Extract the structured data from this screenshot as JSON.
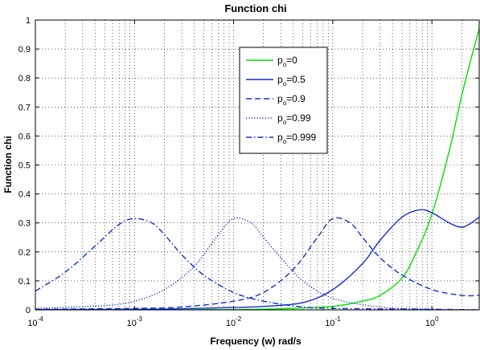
{
  "chart_data": {
    "type": "line",
    "title": "Function chi",
    "xlabel": "Frequency (w) rad/s",
    "ylabel": "Function chi",
    "x_scale": "log",
    "xlim": [
      0.0001,
      3
    ],
    "ylim": [
      0,
      1
    ],
    "grid": true,
    "x_ticks": [
      {
        "value": 0.0001,
        "base": "10",
        "exp": "-4"
      },
      {
        "value": 0.001,
        "base": "10",
        "exp": "-3"
      },
      {
        "value": 0.01,
        "base": "10",
        "exp": "-2"
      },
      {
        "value": 0.1,
        "base": "10",
        "exp": "-1"
      },
      {
        "value": 1,
        "base": "10",
        "exp": "0"
      }
    ],
    "y_ticks": [
      "0",
      "0.1",
      "0.2",
      "0.3",
      "0.4",
      "0.5",
      "0.6",
      "0.7",
      "0.8",
      "0.9",
      "1"
    ],
    "y_tick_values": [
      0,
      0.1,
      0.2,
      0.3,
      0.4,
      0.5,
      0.6,
      0.7,
      0.8,
      0.9,
      1
    ],
    "legend": {
      "placement": "top-right"
    },
    "series": [
      {
        "name": "p",
        "sub": "o",
        "suffix": "=0",
        "color": "#00e000",
        "style": "solid",
        "points": [
          [
            0.0001,
            0
          ],
          [
            0.001,
            0
          ],
          [
            0.01,
            0.001
          ],
          [
            0.03,
            0.004
          ],
          [
            0.1,
            0.012
          ],
          [
            0.2,
            0.03
          ],
          [
            0.3,
            0.05
          ],
          [
            0.5,
            0.11
          ],
          [
            0.7,
            0.2
          ],
          [
            1,
            0.33
          ],
          [
            1.5,
            0.55
          ],
          [
            2,
            0.74
          ],
          [
            2.5,
            0.87
          ],
          [
            3,
            0.97
          ]
        ]
      },
      {
        "name": "p",
        "sub": "o",
        "suffix": "=0.5",
        "color": "#1030d0",
        "style": "solid",
        "points": [
          [
            0.0001,
            0.001
          ],
          [
            0.001,
            0.002
          ],
          [
            0.003,
            0.004
          ],
          [
            0.01,
            0.008
          ],
          [
            0.02,
            0.012
          ],
          [
            0.05,
            0.025
          ],
          [
            0.1,
            0.07
          ],
          [
            0.2,
            0.16
          ],
          [
            0.3,
            0.24
          ],
          [
            0.5,
            0.32
          ],
          [
            0.75,
            0.345
          ],
          [
            1,
            0.335
          ],
          [
            1.5,
            0.3
          ],
          [
            2,
            0.285
          ],
          [
            2.5,
            0.3
          ],
          [
            3,
            0.32
          ]
        ]
      },
      {
        "name": "p",
        "sub": "o",
        "suffix": "=0.9",
        "color": "#1030d0",
        "style": "dashed",
        "points": [
          [
            0.0001,
            0.002
          ],
          [
            0.001,
            0.005
          ],
          [
            0.003,
            0.01
          ],
          [
            0.01,
            0.03
          ],
          [
            0.02,
            0.06
          ],
          [
            0.04,
            0.14
          ],
          [
            0.07,
            0.25
          ],
          [
            0.1,
            0.315
          ],
          [
            0.15,
            0.3
          ],
          [
            0.2,
            0.25
          ],
          [
            0.3,
            0.18
          ],
          [
            0.5,
            0.12
          ],
          [
            1,
            0.07
          ],
          [
            2,
            0.05
          ],
          [
            3,
            0.05
          ]
        ]
      },
      {
        "name": "p",
        "sub": "o",
        "suffix": "=0.99",
        "color": "#1030d0",
        "style": "dotted",
        "points": [
          [
            0.0001,
            0.005
          ],
          [
            0.0005,
            0.015
          ],
          [
            0.001,
            0.03
          ],
          [
            0.002,
            0.07
          ],
          [
            0.004,
            0.15
          ],
          [
            0.007,
            0.26
          ],
          [
            0.01,
            0.315
          ],
          [
            0.015,
            0.3
          ],
          [
            0.02,
            0.25
          ],
          [
            0.03,
            0.18
          ],
          [
            0.05,
            0.1
          ],
          [
            0.1,
            0.04
          ],
          [
            0.3,
            0.01
          ],
          [
            1,
            0.002
          ],
          [
            3,
            0
          ]
        ]
      },
      {
        "name": "p",
        "sub": "o",
        "suffix": "=0.999",
        "color": "#1030d0",
        "style": "dashdot",
        "points": [
          [
            0.0001,
            0.065
          ],
          [
            0.0002,
            0.13
          ],
          [
            0.0004,
            0.22
          ],
          [
            0.0007,
            0.295
          ],
          [
            0.001,
            0.315
          ],
          [
            0.0015,
            0.3
          ],
          [
            0.002,
            0.26
          ],
          [
            0.003,
            0.19
          ],
          [
            0.005,
            0.12
          ],
          [
            0.01,
            0.06
          ],
          [
            0.02,
            0.03
          ],
          [
            0.05,
            0.01
          ],
          [
            0.1,
            0.005
          ],
          [
            1,
            0.002
          ],
          [
            3,
            0
          ]
        ]
      }
    ]
  }
}
